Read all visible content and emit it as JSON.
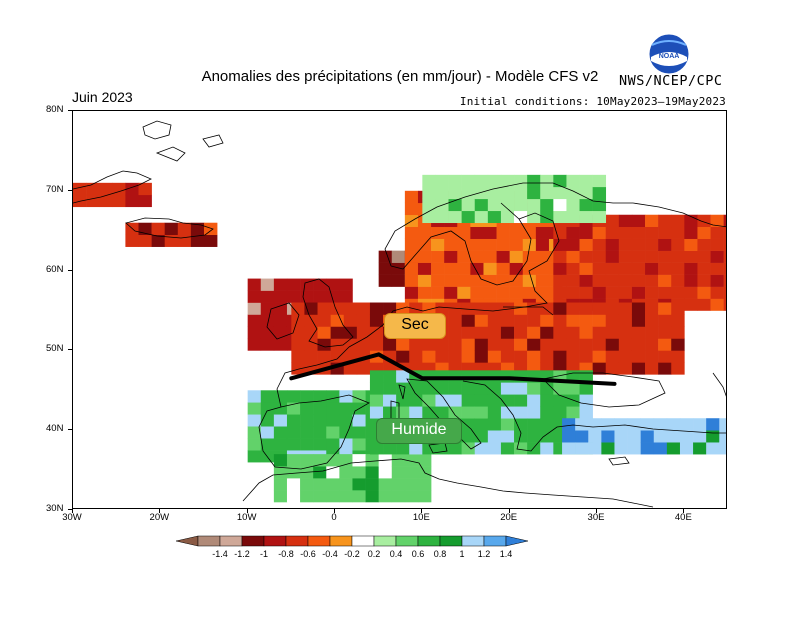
{
  "title": "Anomalies des précipitations (en mm/jour) - Modèle CFS v2",
  "month": "Juin 2023",
  "initial_conditions": "Initial conditions: 10May2023–19May2023",
  "agency": "NWS/NCEP/CPC",
  "logo_text": "NOAA",
  "annotations": {
    "dry": "Sec",
    "wet": "Humide"
  },
  "axes": {
    "lat_labels": [
      "80N",
      "70N",
      "60N",
      "50N",
      "40N",
      "30N"
    ],
    "lon_labels": [
      "30W",
      "20W",
      "10W",
      "0",
      "10E",
      "20E",
      "30E",
      "40E"
    ]
  },
  "legend": {
    "labels": [
      "-1.4",
      "-1.2",
      "-1",
      "-0.8",
      "-0.6",
      "-0.4",
      "-0.2",
      "0.2",
      "0.4",
      "0.6",
      "0.8",
      "1",
      "1.2",
      "1.4"
    ],
    "colors": [
      "#8a5a44",
      "#b08a78",
      "#cfa898",
      "#7a0a0a",
      "#b01212",
      "#d63010",
      "#f45a10",
      "#f7941d",
      "#ffffff",
      "#a8eea0",
      "#62d26a",
      "#2eb340",
      "#159c2e",
      "#a8d6f8",
      "#58a8ec",
      "#2f7fd8"
    ]
  },
  "chart_data": {
    "type": "heatmap",
    "variable": "precipitation anomaly (mm/day)",
    "period": "Juin 2023",
    "model": "CFS v2",
    "xlim": [
      -30,
      45
    ],
    "ylim": [
      30,
      80
    ],
    "color_scale": [
      -1.4,
      -1.2,
      -1.0,
      -0.8,
      -0.6,
      -0.4,
      -0.2,
      0.2,
      0.4,
      0.6,
      0.8,
      1.0,
      1.2,
      1.4
    ],
    "regions": [
      {
        "lon": [
          -30,
          -21
        ],
        "lat": [
          68,
          71
        ],
        "value": -0.5
      },
      {
        "lon": [
          -24,
          -14
        ],
        "lat": [
          63,
          66
        ],
        "value": -0.6
      },
      {
        "lon": [
          -10,
          2
        ],
        "lat": [
          50,
          58
        ],
        "value": -0.8
      },
      {
        "lon": [
          5,
          9
        ],
        "lat": [
          58,
          62
        ],
        "value": -1.0
      },
      {
        "lon": [
          8,
          25
        ],
        "lat": [
          55,
          69
        ],
        "value": -0.4
      },
      {
        "lon": [
          25,
          45
        ],
        "lat": [
          55,
          66
        ],
        "value": -0.5
      },
      {
        "lon": [
          -5,
          40
        ],
        "lat": [
          47,
          56
        ],
        "value": -0.6
      },
      {
        "lon": [
          10,
          30
        ],
        "lat": [
          66,
          71
        ],
        "value": 0.4
      },
      {
        "lon": [
          -10,
          4
        ],
        "lat": [
          36,
          44
        ],
        "value": 0.8
      },
      {
        "lon": [
          -7,
          10
        ],
        "lat": [
          31,
          36
        ],
        "value": 0.6
      },
      {
        "lon": [
          4,
          29
        ],
        "lat": [
          37,
          47
        ],
        "value": 0.8
      },
      {
        "lon": [
          26,
          45
        ],
        "lat": [
          37,
          41
        ],
        "value": 1.2
      }
    ],
    "front_line": {
      "lon": [
        -5,
        5,
        10,
        20,
        32
      ],
      "lat": [
        46.5,
        49.5,
        46.5,
        46.5,
        45.8
      ]
    }
  }
}
